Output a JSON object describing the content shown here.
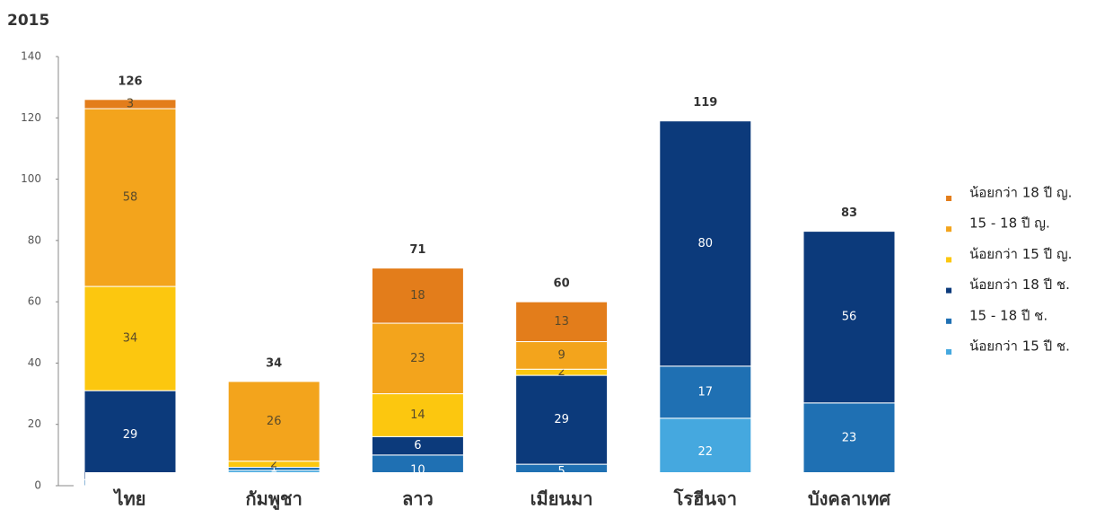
{
  "chart_data": {
    "type": "stacked_bar",
    "title": "2015",
    "categories": [
      "ไทย",
      "กัมพูชา",
      "ลาว",
      "เมียนมา",
      "โรฮีนจา",
      "บังคลาเทศ"
    ],
    "series": [
      {
        "name": "น้อยกว่า 15 ปี ช.",
        "color": "#45a8df",
        "values": [
          null,
          5,
          null,
          2,
          22,
          4
        ]
      },
      {
        "name": "15 - 18 ปี ช.",
        "color": "#1f70b3",
        "values": [
          2,
          1,
          10,
          5,
          17,
          23
        ]
      },
      {
        "name": "น้อยกว่า 18 ปี ช.",
        "color": "#0c3a7b",
        "values": [
          29,
          null,
          6,
          29,
          80,
          56
        ]
      },
      {
        "name": "น้อยกว่า 15 ปี ญ.",
        "color": "#fcc70f",
        "values": [
          34,
          2,
          14,
          2,
          null,
          null
        ]
      },
      {
        "name": "15 - 18 ปี ญ.",
        "color": "#f3a41c",
        "values": [
          58,
          26,
          23,
          9,
          null,
          null
        ]
      },
      {
        "name": "น้อยกว่า 18 ปี ญ.",
        "color": "#e37d1b",
        "values": [
          3,
          null,
          18,
          13,
          null,
          null
        ]
      }
    ],
    "totals": [
      126,
      34,
      71,
      60,
      119,
      83
    ],
    "ylim": [
      0,
      140
    ],
    "yticks": [
      0,
      20,
      40,
      60,
      80,
      100,
      120,
      140
    ]
  }
}
